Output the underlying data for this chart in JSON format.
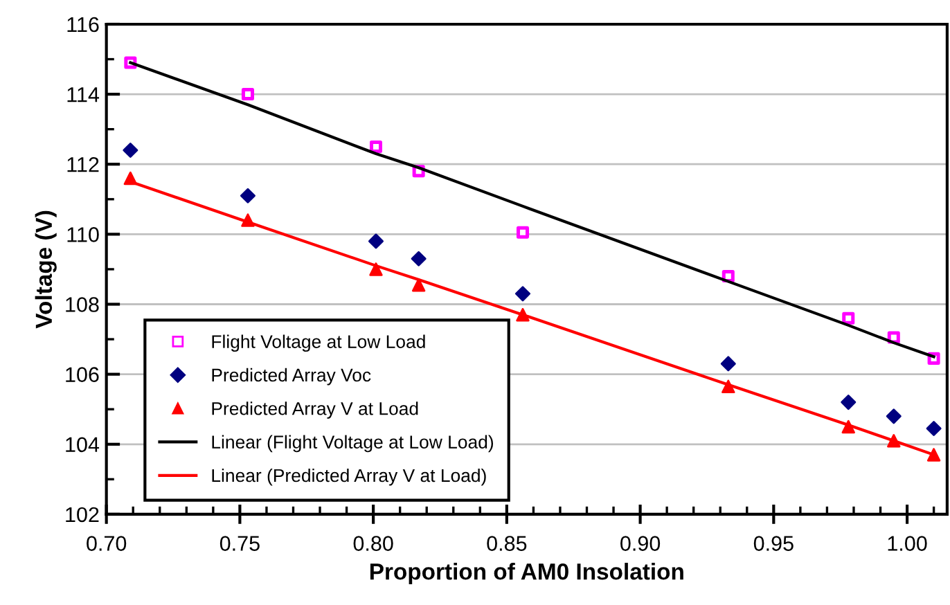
{
  "chart_data": {
    "type": "scatter",
    "xlabel": "Proportion of AM0 Insolation",
    "ylabel": "Voltage (V)",
    "xlim": [
      0.7,
      1.015
    ],
    "xticks": [
      {
        "value": 0.7,
        "label": "0.70"
      },
      {
        "value": 0.75,
        "label": "0.75"
      },
      {
        "value": 0.8,
        "label": "0.80"
      },
      {
        "value": 0.85,
        "label": "0.85"
      },
      {
        "value": 0.9,
        "label": "0.90"
      },
      {
        "value": 0.95,
        "label": "0.95"
      },
      {
        "value": 1.0,
        "label": "1.00"
      }
    ],
    "ylim": [
      102,
      116
    ],
    "yticks": [
      102,
      104,
      106,
      108,
      110,
      112,
      114,
      116
    ],
    "grid": "y",
    "legend": "bottom left",
    "x": [
      0.709,
      0.753,
      0.801,
      0.817,
      0.856,
      0.933,
      0.978,
      0.995,
      1.01
    ],
    "series": [
      {
        "name": "Flight Voltage at Low Load",
        "color": "#ff00ff",
        "marker": "square",
        "values": [
          114.9,
          114.0,
          112.5,
          111.8,
          110.05,
          108.8,
          107.6,
          107.05,
          106.45
        ]
      },
      {
        "name": "Predicted Array Voc",
        "color": "#000080",
        "marker": "diamond",
        "values": [
          112.4,
          111.1,
          109.8,
          109.3,
          108.3,
          106.3,
          105.2,
          104.8,
          104.45
        ]
      },
      {
        "name": "Predicted Array V at Load",
        "color": "#ff0000",
        "marker": "triangle",
        "values": [
          111.6,
          110.4,
          109.0,
          108.55,
          107.7,
          105.65,
          104.5,
          104.1,
          103.7
        ]
      },
      {
        "name": "Linear (Flight Voltage at Low Load)",
        "type": "line",
        "color": "#000000",
        "values": [
          114.9,
          113.7,
          112.3,
          111.9,
          110.8,
          108.65,
          107.4,
          106.9,
          106.5
        ]
      },
      {
        "name": "Linear (Predicted Array V at Load)",
        "type": "line",
        "color": "#ff0000",
        "values": [
          111.5,
          110.35,
          109.1,
          108.7,
          107.7,
          105.7,
          104.55,
          104.1,
          103.7
        ]
      }
    ]
  }
}
